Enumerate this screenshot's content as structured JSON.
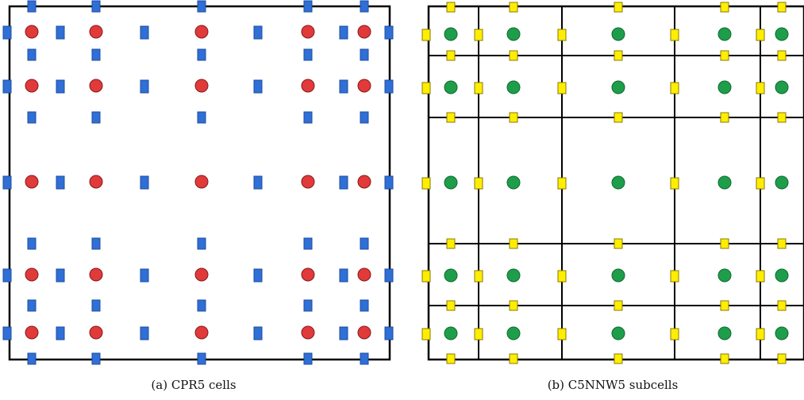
{
  "panels": [
    {
      "id": "a",
      "caption": "(a) CPR5 cells",
      "solution_point": {
        "shape": "circle",
        "color": "#e03a3a",
        "edge": "#8a1a1a"
      },
      "flux_point": {
        "shape": "rect",
        "color": "#2f6fd6",
        "edge": "#1c4d9e"
      },
      "subcell_grid": false
    },
    {
      "id": "b",
      "caption": "(b) C5NNW5 subcells",
      "solution_point": {
        "shape": "circle",
        "color": "#1e9e4a",
        "edge": "#0f6a2f"
      },
      "flux_point": {
        "shape": "rect",
        "color": "#ffee00",
        "edge": "#8a7a00"
      },
      "subcell_grid": true
    }
  ]
}
